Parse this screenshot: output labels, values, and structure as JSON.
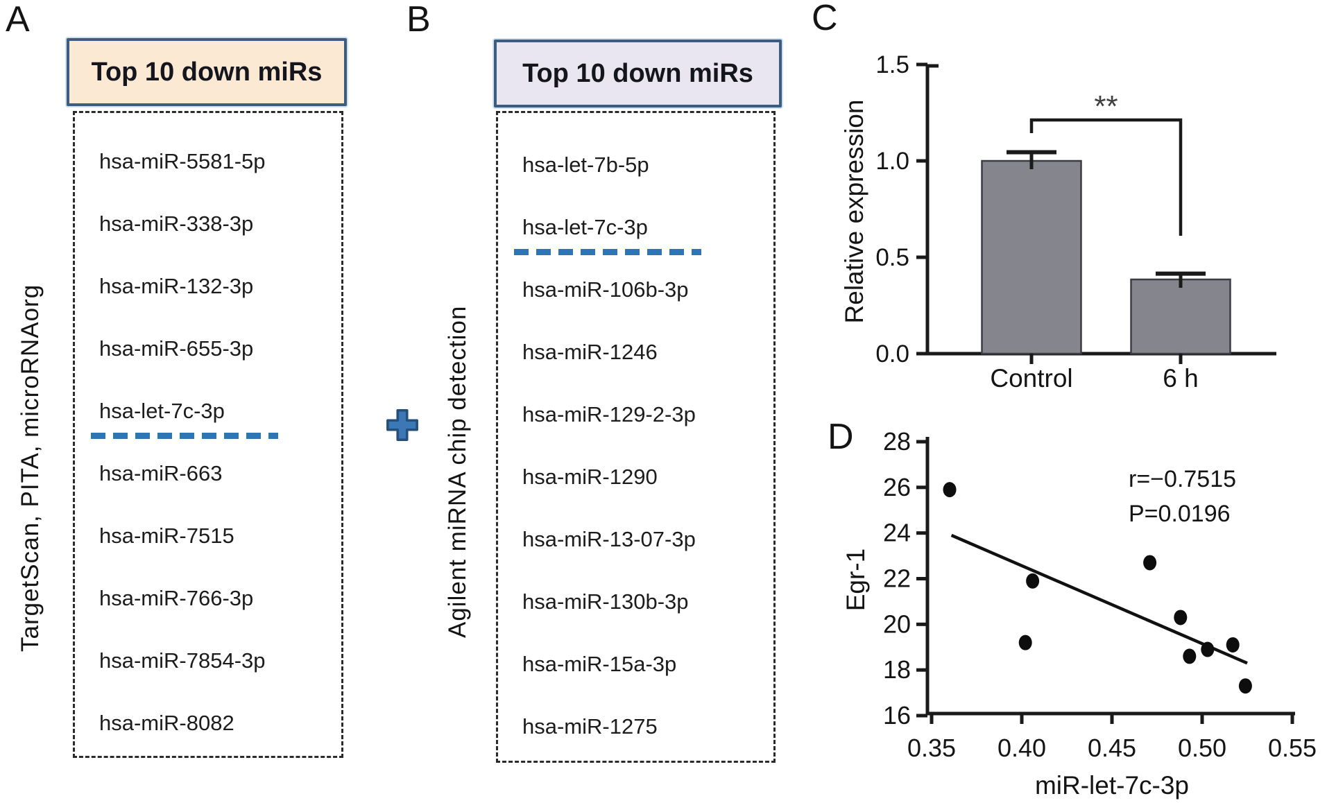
{
  "colors": {
    "highlight": "#2e75b6",
    "box_border": "#3e5c80",
    "title_bg_a": "#fbe9d4",
    "title_bg_b": "#e9e6f2",
    "plus": "#3b78b5",
    "plus_border": "#26507c",
    "bar": "#85858d",
    "axis": "#1a1a1a"
  },
  "panels": {
    "a": {
      "letter": "A",
      "title": "Top 10 down miRs",
      "side_label": "TargetScan, PITA, microRNAorg",
      "items": [
        {
          "label": "hsa-miR-5581-5p"
        },
        {
          "label": "hsa-miR-338-3p"
        },
        {
          "label": "hsa-miR-132-3p"
        },
        {
          "label": "hsa-miR-655-3p"
        },
        {
          "label": "hsa-let-7c-3p",
          "underlined": true
        },
        {
          "label": "hsa-miR-663"
        },
        {
          "label": "hsa-miR-7515"
        },
        {
          "label": "hsa-miR-766-3p"
        },
        {
          "label": "hsa-miR-7854-3p"
        },
        {
          "label": "hsa-miR-8082"
        }
      ]
    },
    "b": {
      "letter": "B",
      "title": "Top 10 down miRs",
      "side_label": "Agilent miRNA chip detection",
      "items": [
        {
          "label": "hsa-let-7b-5p"
        },
        {
          "label": "hsa-let-7c-3p",
          "underlined": true
        },
        {
          "label": "hsa-miR-106b-3p"
        },
        {
          "label": "hsa-miR-1246"
        },
        {
          "label": "hsa-miR-129-2-3p"
        },
        {
          "label": "hsa-miR-1290"
        },
        {
          "label": "hsa-miR-13-07-3p"
        },
        {
          "label": "hsa-miR-130b-3p"
        },
        {
          "label": "hsa-miR-15a-3p"
        },
        {
          "label": "hsa-miR-1275"
        }
      ]
    },
    "c": {
      "letter": "C"
    },
    "d": {
      "letter": "D"
    }
  },
  "chart_data": [
    {
      "type": "bar",
      "panel": "C",
      "categories": [
        "Control",
        "6 h"
      ],
      "values": [
        1.0,
        0.385
      ],
      "errors": [
        0.045,
        0.03
      ],
      "title": "",
      "xlabel": "",
      "ylabel": "Relative expression",
      "yticks": [
        0.0,
        0.5,
        1.0,
        1.5
      ],
      "ylim": [
        0,
        1.5
      ],
      "significance": "**",
      "bar_color": "#85858d",
      "grid": false,
      "legend": "none"
    },
    {
      "type": "scatter",
      "panel": "D",
      "xlabel": "miR-let-7c-3p",
      "ylabel": "Egr-1",
      "xticks": [
        0.35,
        0.4,
        0.45,
        0.5,
        0.55
      ],
      "yticks": [
        16,
        18,
        20,
        22,
        24,
        26,
        28
      ],
      "xlim": [
        0.35,
        0.55
      ],
      "ylim": [
        16,
        28
      ],
      "points": [
        [
          0.36,
          25.9
        ],
        [
          0.402,
          19.2
        ],
        [
          0.406,
          21.9
        ],
        [
          0.471,
          22.7
        ],
        [
          0.488,
          20.3
        ],
        [
          0.493,
          18.6
        ],
        [
          0.503,
          18.9
        ],
        [
          0.517,
          19.1
        ],
        [
          0.524,
          17.3
        ]
      ],
      "regression_line": {
        "x1": 0.361,
        "y1": 23.9,
        "x2": 0.525,
        "y2": 18.3
      },
      "annotations": [
        "r=−0.7515",
        "P=0.0196"
      ],
      "grid": false,
      "legend": "none"
    }
  ]
}
